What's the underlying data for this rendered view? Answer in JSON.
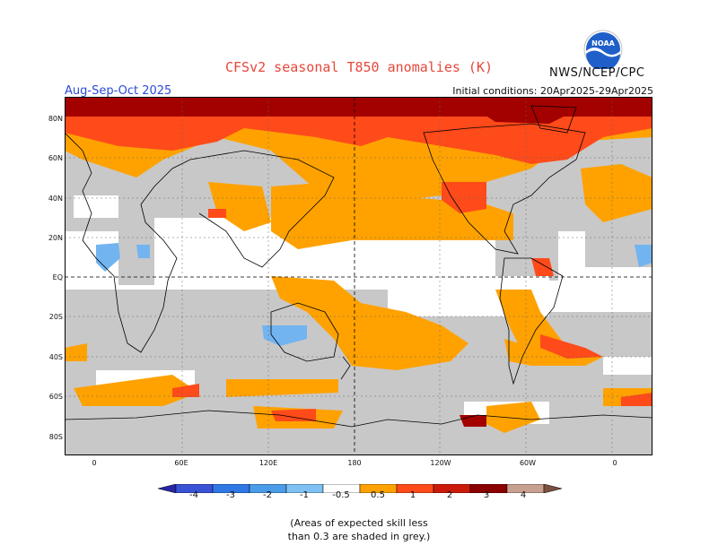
{
  "title": "CFSv2 seasonal T850 anomalies (K)",
  "agency": "NWS/NCEP/CPC",
  "logo_text": "NOAA",
  "season": "Aug-Sep-Oct 2025",
  "initial_conditions": "Initial conditions: 20Apr2025-29Apr2025",
  "lat_labels": [
    "80N",
    "60N",
    "40N",
    "20N",
    "EQ",
    "20S",
    "40S",
    "60S",
    "80S"
  ],
  "lon_labels": [
    "0",
    "60E",
    "120E",
    "180",
    "120W",
    "60W",
    "0"
  ],
  "colorbar_labels": [
    "-4",
    "-3",
    "-2",
    "-1",
    "-0.5",
    "0.5",
    "1",
    "2",
    "3",
    "4"
  ],
  "colorbar_colors": [
    "#2626a6",
    "#3a52d6",
    "#2f78e6",
    "#4a9be8",
    "#7fc0f2",
    "#ffffff",
    "#ffa200",
    "#ff4a1a",
    "#cc1a0a",
    "#8b0000",
    "#c8a090",
    "#7a5040"
  ],
  "map_colors": {
    "skill_grey": "#c8c8c8",
    "orange": "#ffa200",
    "red": "#ff4a1a",
    "dark_red": "#a30000",
    "light_blue": "#72b4f0"
  },
  "note_line1": "(Areas of expected skill less",
  "note_line2": "than 0.3 are shaded in grey.)"
}
